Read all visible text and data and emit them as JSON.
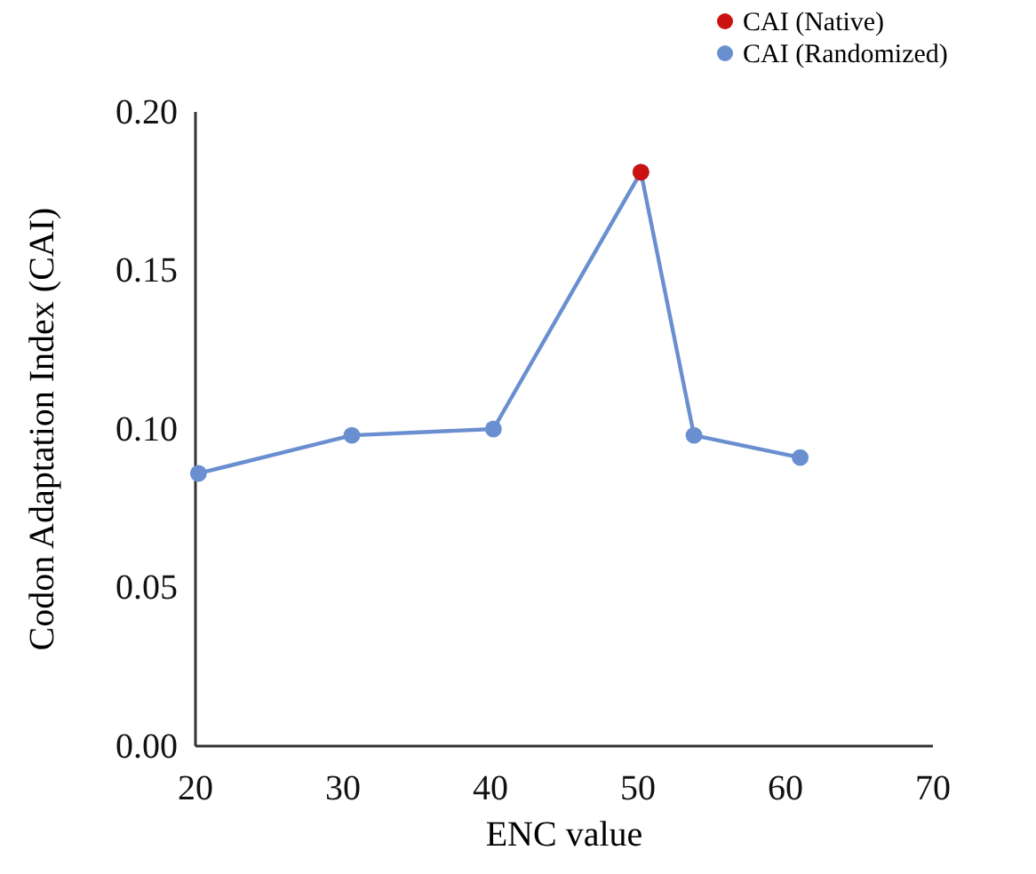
{
  "chart_data": {
    "type": "line",
    "xlabel": "ENC value",
    "ylabel": "Codon Adaptation Index (CAI)",
    "xlim": [
      20,
      70
    ],
    "xticks": [
      20,
      30,
      40,
      50,
      60,
      70
    ],
    "ylim": [
      0,
      0.2
    ],
    "yticks": [
      {
        "value": 0,
        "label": "0.00"
      },
      {
        "value": 0.05,
        "label": "0.05"
      },
      {
        "value": 0.1,
        "label": "0.10"
      },
      {
        "value": 0.15,
        "label": "0.15"
      },
      {
        "value": 0.2,
        "label": "0.20"
      }
    ],
    "grid": false,
    "legend": "top right",
    "marker": "circle",
    "series": [
      {
        "name": "CAI (Native)",
        "type": "scatter",
        "color": "#cc1111",
        "x": [
          50.2
        ],
        "values": [
          0.181
        ]
      },
      {
        "name": "CAI (Randomized)",
        "color": "#6a8fd0",
        "x": [
          20.2,
          30.6,
          40.2,
          50.2,
          53.8,
          61.0
        ],
        "values": [
          0.086,
          0.098,
          0.1,
          0.181,
          0.098,
          0.091
        ]
      }
    ]
  }
}
